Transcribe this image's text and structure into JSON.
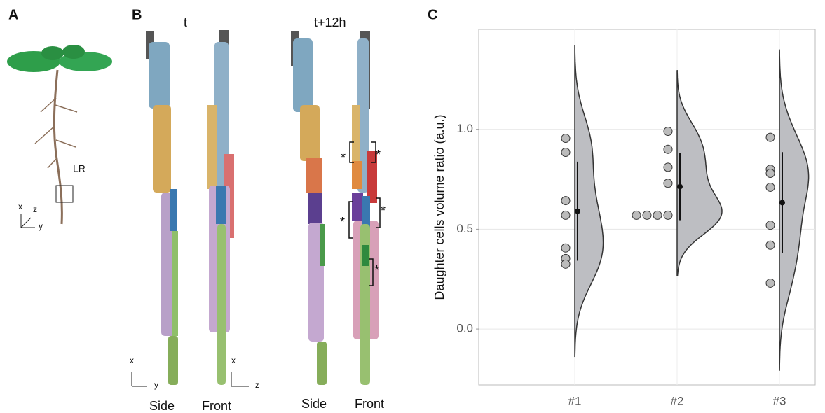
{
  "panels": {
    "a": {
      "label": "A",
      "root_label": "LR",
      "axes": [
        "x",
        "z",
        "y"
      ]
    },
    "b": {
      "label": "B",
      "times": [
        "t",
        "t+12h"
      ],
      "views": [
        "Side",
        "Front",
        "Side",
        "Front"
      ],
      "asterisks": [
        "*",
        "*",
        "*",
        "*",
        "*"
      ],
      "side_axes": [
        "x",
        "y"
      ],
      "front_axes": [
        "x",
        "z"
      ]
    }
  },
  "chart_data": {
    "type": "half-violin",
    "label": "C",
    "y_label": "Daughter cells volume ratio (a.u.)",
    "categories": [
      "#1",
      "#2",
      "#3"
    ],
    "values": [
      [
        0.955,
        0.885,
        0.643,
        0.57,
        0.406,
        0.353,
        0.325
      ],
      [
        0.99,
        0.9,
        0.81,
        0.73,
        0.57,
        0.57,
        0.57,
        0.57
      ],
      [
        0.96,
        0.8,
        0.78,
        0.71,
        0.52,
        0.42,
        0.23
      ]
    ],
    "means": [
      0.59,
      0.713,
      0.633
    ],
    "sds": [
      0.248,
      0.168,
      0.253
    ],
    "ylim": [
      -0.28,
      1.5
    ],
    "yticks": [
      {
        "value": 0,
        "label": "0.0"
      },
      0.5,
      {
        "value": 1,
        "label": "1.0"
      }
    ],
    "grid": true,
    "violin_color": "#bdbec2",
    "point_color": "#bbbbbb",
    "line_color": "#333333"
  }
}
